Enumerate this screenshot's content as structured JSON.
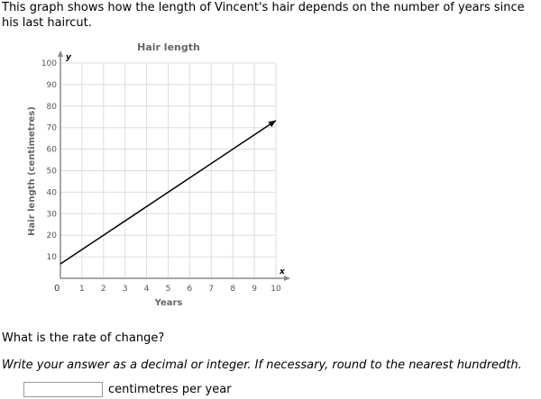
{
  "intro": "This graph shows how the length of Vincent's hair depends on the number of years since his last haircut.",
  "question": "What is the rate of change?",
  "instruction": "Write your answer as a decimal or integer. If necessary, round to the nearest hundredth.",
  "answer": {
    "value": "",
    "unit": "centimetres per year"
  },
  "chart_data": {
    "type": "line",
    "title": "Hair length",
    "xlabel": "Years",
    "ylabel": "Hair length (centimetres)",
    "x_axis_letter": "x",
    "y_axis_letter": "y",
    "origin_label": "0",
    "xlim": [
      0,
      10
    ],
    "ylim": [
      0,
      100
    ],
    "xticks": [
      "1",
      "2",
      "3",
      "4",
      "5",
      "6",
      "7",
      "8",
      "9",
      "10"
    ],
    "yticks": [
      "10",
      "20",
      "30",
      "40",
      "50",
      "60",
      "70",
      "80",
      "90",
      "100"
    ],
    "grid": true,
    "series": [
      {
        "points": [
          [
            0,
            6.67
          ],
          [
            10,
            73.33
          ]
        ],
        "arrow_end": true,
        "color": "#000000"
      }
    ]
  }
}
